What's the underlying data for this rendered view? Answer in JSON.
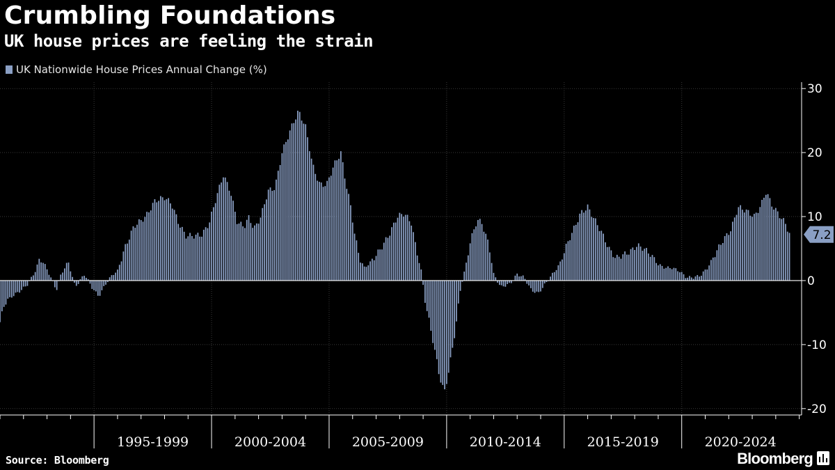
{
  "header": {
    "title": "Crumbling Foundations",
    "subtitle": "UK house prices are feeling the strain"
  },
  "footer": {
    "source": "Source: Bloomberg",
    "brand": "Bloomberg"
  },
  "colors": {
    "background": "#000000",
    "bar": "#8a9fc4",
    "grid": "#3a3a3a",
    "zero_line": "#ffffff",
    "text": "#ffffff",
    "badge": "#8a9fc4"
  },
  "icons": {
    "brand": "bloomberg-chart-icon"
  },
  "chart_data": {
    "type": "bar",
    "legend": "UK Nationwide House Prices Annual Change (%)",
    "frequency": "monthly",
    "x_start": "1991-01",
    "x_end": "2024-12",
    "xlim_years": [
      1991.0,
      2025.1
    ],
    "categories": [
      "1995-1999",
      "2000-2004",
      "2005-2009",
      "2010-2014",
      "2015-2019",
      "2020-2024"
    ],
    "category_year_ranges": [
      [
        1995,
        2000
      ],
      [
        2000,
        2005
      ],
      [
        2005,
        2010
      ],
      [
        2010,
        2015
      ],
      [
        2015,
        2020
      ],
      [
        2020,
        2025
      ]
    ],
    "y_axis_side": "right",
    "ylim": [
      -21,
      31
    ],
    "yticks": [
      30,
      20,
      10,
      0,
      -10,
      -20
    ],
    "ytick_labels": [
      "30",
      "20",
      "10",
      "0",
      "-10",
      "-20"
    ],
    "last_value_label": "7.2",
    "anchors": [
      [
        1991.0,
        -6.5
      ],
      [
        1991.2,
        -3.5
      ],
      [
        1991.5,
        -2.5
      ],
      [
        1991.9,
        -1.5
      ],
      [
        1992.2,
        -0.5
      ],
      [
        1992.5,
        1.5
      ],
      [
        1992.7,
        3.5
      ],
      [
        1992.9,
        2.5
      ],
      [
        1993.1,
        1.0
      ],
      [
        1993.4,
        -1.5
      ],
      [
        1993.6,
        1.0
      ],
      [
        1993.9,
        3.0
      ],
      [
        1994.2,
        -1.0
      ],
      [
        1994.6,
        1.0
      ],
      [
        1994.9,
        -1.0
      ],
      [
        1995.2,
        -2.5
      ],
      [
        1995.5,
        -0.5
      ],
      [
        1995.8,
        1.0
      ],
      [
        1996.0,
        1.5
      ],
      [
        1996.3,
        5.0
      ],
      [
        1996.7,
        8.5
      ],
      [
        1997.2,
        10.0
      ],
      [
        1997.6,
        12.5
      ],
      [
        1998.0,
        13.0
      ],
      [
        1998.3,
        12.0
      ],
      [
        1998.6,
        9.0
      ],
      [
        1998.9,
        7.0
      ],
      [
        1999.3,
        7.0
      ],
      [
        1999.6,
        7.2
      ],
      [
        1999.9,
        9.0
      ],
      [
        2000.2,
        13.0
      ],
      [
        2000.5,
        16.5
      ],
      [
        2000.8,
        14.0
      ],
      [
        2001.1,
        9.0
      ],
      [
        2001.4,
        8.5
      ],
      [
        2001.6,
        10.0
      ],
      [
        2001.8,
        8.0
      ],
      [
        2002.1,
        10.0
      ],
      [
        2002.4,
        14.0
      ],
      [
        2002.7,
        14.5
      ],
      [
        2003.0,
        20.0
      ],
      [
        2003.4,
        24.0
      ],
      [
        2003.7,
        26.5
      ],
      [
        2004.0,
        24.0
      ],
      [
        2004.3,
        18.0
      ],
      [
        2004.6,
        15.0
      ],
      [
        2004.9,
        15.0
      ],
      [
        2005.2,
        18.0
      ],
      [
        2005.5,
        20.0
      ],
      [
        2005.7,
        15.5
      ],
      [
        2005.9,
        12.0
      ],
      [
        2006.1,
        7.0
      ],
      [
        2006.3,
        3.5
      ],
      [
        2006.5,
        2.0
      ],
      [
        2006.8,
        3.0
      ],
      [
        2007.2,
        5.0
      ],
      [
        2007.6,
        7.5
      ],
      [
        2007.9,
        10.0
      ],
      [
        2008.2,
        10.5
      ],
      [
        2008.5,
        9.0
      ],
      [
        2008.7,
        5.0
      ],
      [
        2008.9,
        2.0
      ],
      [
        2009.1,
        -3.5
      ],
      [
        2009.4,
        -9.0
      ],
      [
        2009.7,
        -15.0
      ],
      [
        2009.9,
        -17.5
      ],
      [
        2010.1,
        -14.0
      ],
      [
        2010.4,
        -7.0
      ],
      [
        2010.6,
        -1.0
      ],
      [
        2010.8,
        2.0
      ],
      [
        2011.0,
        6.0
      ],
      [
        2011.3,
        9.5
      ],
      [
        2011.5,
        9.0
      ],
      [
        2011.8,
        5.5
      ],
      [
        2012.0,
        1.0
      ],
      [
        2012.3,
        -1.0
      ],
      [
        2012.7,
        -0.5
      ],
      [
        2013.0,
        1.0
      ],
      [
        2013.3,
        0.5
      ],
      [
        2013.6,
        -1.5
      ],
      [
        2013.9,
        -2.0
      ],
      [
        2014.2,
        -0.5
      ],
      [
        2014.5,
        1.0
      ],
      [
        2014.8,
        2.5
      ],
      [
        2015.1,
        5.5
      ],
      [
        2015.4,
        8.0
      ],
      [
        2015.7,
        10.5
      ],
      [
        2016.0,
        11.5
      ],
      [
        2016.3,
        9.5
      ],
      [
        2016.6,
        7.5
      ],
      [
        2016.9,
        5.0
      ],
      [
        2017.2,
        3.5
      ],
      [
        2017.5,
        4.0
      ],
      [
        2017.8,
        4.5
      ],
      [
        2018.1,
        5.5
      ],
      [
        2018.4,
        5.0
      ],
      [
        2018.7,
        4.0
      ],
      [
        2019.0,
        2.5
      ],
      [
        2019.3,
        2.0
      ],
      [
        2019.6,
        2.0
      ],
      [
        2019.9,
        1.5
      ],
      [
        2020.2,
        0.5
      ],
      [
        2020.5,
        0.5
      ],
      [
        2020.8,
        0.8
      ],
      [
        2021.1,
        2.0
      ],
      [
        2021.4,
        4.0
      ],
      [
        2021.7,
        6.0
      ],
      [
        2021.9,
        7.0
      ],
      [
        2022.1,
        8.0
      ],
      [
        2022.4,
        11.5
      ],
      [
        2022.7,
        11.0
      ],
      [
        2022.9,
        10.5
      ],
      [
        2023.1,
        10.0
      ],
      [
        2023.4,
        12.0
      ],
      [
        2023.6,
        14.0
      ],
      [
        2023.8,
        12.0
      ],
      [
        2024.1,
        10.5
      ],
      [
        2024.4,
        9.0
      ],
      [
        2024.6,
        7.2
      ]
    ]
  }
}
